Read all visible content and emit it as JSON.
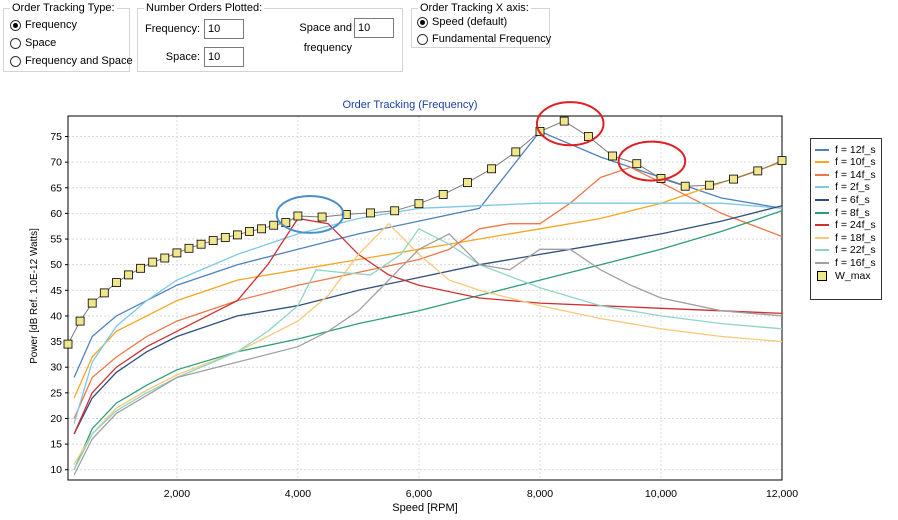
{
  "tracking_type": {
    "title": "Order Tracking Type:",
    "options": [
      {
        "label": "Frequency",
        "selected": true
      },
      {
        "label": "Space",
        "selected": false
      },
      {
        "label": "Frequency and Space",
        "selected": false
      }
    ]
  },
  "orders_plotted": {
    "title": "Number Orders Plotted:",
    "frequency_label": "Frequency:",
    "frequency_value": "10",
    "space_freq_label": "Space and frequency",
    "space_freq_value": "10",
    "space_label": "Space:",
    "space_value": "10"
  },
  "x_axis": {
    "title": "Order Tracking X axis:",
    "options": [
      {
        "label": "Speed (default)",
        "selected": true
      },
      {
        "label": "Fundamental Frequency",
        "selected": false
      }
    ]
  },
  "chart_data": {
    "type": "line",
    "title": "Order Tracking (Frequency)",
    "xlabel": "Speed [RPM]",
    "ylabel": "Power [dB Ref. 1.0E-12 Watts]",
    "xlim": [
      200,
      12000
    ],
    "ylim": [
      8,
      79
    ],
    "grid": true,
    "legend_position": "right",
    "x_ticks": [
      "2,000",
      "4,000",
      "6,000",
      "8,000",
      "10,000",
      "12,000"
    ],
    "y_ticks": [
      "10",
      "15",
      "20",
      "25",
      "30",
      "35",
      "40",
      "45",
      "50",
      "55",
      "60",
      "65",
      "70",
      "75"
    ],
    "series": [
      {
        "name": "f = 12f_s",
        "color": "#4f81bd",
        "x": [
          300,
          600,
          1000,
          1500,
          2000,
          3000,
          4000,
          5000,
          6000,
          7000,
          8000,
          9000,
          10000,
          11000,
          12000
        ],
        "y": [
          28,
          36,
          40,
          43,
          46,
          50,
          53,
          56,
          58.5,
          61,
          76,
          71,
          67,
          63,
          61
        ]
      },
      {
        "name": "f = 10f_s",
        "color": "#f5a623",
        "x": [
          300,
          600,
          1000,
          1500,
          2000,
          3000,
          4000,
          5000,
          6000,
          7000,
          8000,
          9000,
          10000,
          11000,
          12000
        ],
        "y": [
          24,
          32,
          37,
          40,
          43,
          47,
          49,
          51,
          53,
          55,
          57,
          59,
          62,
          66,
          70
        ]
      },
      {
        "name": "f = 14f_s",
        "color": "#f07848",
        "x": [
          300,
          600,
          1000,
          1500,
          2000,
          3000,
          4000,
          5000,
          6000,
          6500,
          7000,
          7500,
          8000,
          8500,
          9000,
          9500,
          10000,
          11000,
          12000
        ],
        "y": [
          20,
          28,
          32,
          36,
          39,
          43,
          46,
          48.5,
          51,
          53,
          57,
          58,
          58,
          62,
          67,
          69,
          66,
          60,
          55.5
        ]
      },
      {
        "name": "f = 2f_s",
        "color": "#7ec8e3",
        "x": [
          300,
          600,
          1000,
          1500,
          2000,
          3000,
          4000,
          5000,
          6000,
          7000,
          8000,
          9000,
          10000,
          11000,
          12000
        ],
        "y": [
          19,
          31,
          38,
          43,
          47,
          52,
          56,
          59,
          61,
          61.5,
          62,
          62,
          62,
          62,
          61
        ]
      },
      {
        "name": "f = 6f_s",
        "color": "#2f4f7f",
        "x": [
          300,
          600,
          1000,
          1500,
          2000,
          3000,
          4000,
          5000,
          6000,
          7000,
          8000,
          9000,
          10000,
          11000,
          12000
        ],
        "y": [
          17,
          24,
          29,
          33,
          36,
          40,
          42,
          45,
          47.5,
          50,
          52,
          54,
          56,
          58.5,
          61.5
        ]
      },
      {
        "name": "f = 8f_s",
        "color": "#2e9e7a",
        "x": [
          300,
          600,
          1000,
          1500,
          2000,
          3000,
          4000,
          5000,
          6000,
          7000,
          8000,
          9000,
          10000,
          11000,
          12000
        ],
        "y": [
          10,
          18,
          23,
          26.5,
          29.5,
          33,
          35.5,
          38.5,
          41,
          44,
          47,
          50,
          53,
          56.5,
          60.5
        ]
      },
      {
        "name": "f = 24f_s",
        "color": "#d03030",
        "x": [
          300,
          600,
          1000,
          1500,
          2000,
          2500,
          3000,
          3500,
          4000,
          4500,
          5000,
          5500,
          6000,
          7000,
          8000,
          9000,
          10000,
          11000,
          12000
        ],
        "y": [
          17,
          25,
          30,
          34,
          37,
          40,
          43,
          50,
          59,
          58,
          52,
          48,
          46,
          43.5,
          42.5,
          42,
          41.5,
          41,
          40.5
        ]
      },
      {
        "name": "f = 18f_s",
        "color": "#f7c97a",
        "x": [
          300,
          600,
          1000,
          1500,
          2000,
          3000,
          4000,
          4500,
          5000,
          5500,
          6000,
          6500,
          7000,
          7500,
          8000,
          9000,
          10000,
          11000,
          12000
        ],
        "y": [
          11,
          17,
          22,
          25.5,
          28.5,
          33,
          39,
          44,
          52,
          58,
          52,
          47,
          45,
          43.5,
          42,
          39.5,
          37.5,
          36,
          35
        ]
      },
      {
        "name": "f = 22f_s",
        "color": "#8fd4c8",
        "x": [
          300,
          600,
          1000,
          1500,
          2000,
          3000,
          3500,
          4000,
          4300,
          4700,
          5200,
          5700,
          6000,
          6500,
          7000,
          8000,
          9000,
          10000,
          11000,
          12000
        ],
        "y": [
          10,
          17,
          21.5,
          25,
          28,
          33,
          37,
          42,
          49,
          48.5,
          48,
          52,
          57,
          54,
          50,
          45.5,
          42,
          40,
          38.5,
          37.5
        ]
      },
      {
        "name": "f = 16f_s",
        "color": "#a0a0a0",
        "x": [
          300,
          600,
          1000,
          1500,
          2000,
          3000,
          4000,
          4500,
          5000,
          5500,
          6000,
          6500,
          7000,
          7500,
          8000,
          8200,
          8500,
          9000,
          9500,
          10000,
          11000,
          12000
        ],
        "y": [
          9,
          16,
          21,
          24.5,
          28,
          31,
          34,
          37,
          41,
          47,
          53,
          56,
          50,
          49,
          53,
          53,
          53,
          49,
          46,
          43.5,
          41,
          40
        ]
      },
      {
        "name": "W_max",
        "color": "#7a7a7a",
        "marker": "square",
        "x": [
          200,
          400,
          600,
          800,
          1000,
          1200,
          1400,
          1600,
          1800,
          2000,
          2200,
          2400,
          2600,
          2800,
          3000,
          3200,
          3400,
          3600,
          3800,
          4000,
          4400,
          4800,
          5200,
          5600,
          6000,
          6400,
          6800,
          7200,
          7600,
          8000,
          8400,
          8800,
          9200,
          9600,
          10000,
          10400,
          10800,
          11200,
          11600,
          12000
        ],
        "y": [
          34.5,
          39,
          42.5,
          44.5,
          46.5,
          48,
          49.3,
          50.5,
          51.3,
          52.3,
          53.2,
          54,
          54.7,
          55.3,
          55.8,
          56.5,
          57,
          57.7,
          58.2,
          59.5,
          59.3,
          59.8,
          60.1,
          60.5,
          61.9,
          63.7,
          66,
          68.7,
          72,
          76,
          78,
          75,
          71.2,
          69.7,
          66.8,
          65.3,
          65.5,
          66.7,
          68.3,
          70.3
        ]
      }
    ]
  },
  "highlights": [
    {
      "color": "#4a90c8",
      "x": 4200,
      "y": 59.8,
      "rx": 550,
      "ry": 3.6
    },
    {
      "color": "#e02020",
      "x": 8500,
      "y": 77.5,
      "rx": 550,
      "ry": 4.2
    },
    {
      "color": "#e02020",
      "x": 9850,
      "y": 70.2,
      "rx": 550,
      "ry": 3.8
    }
  ]
}
